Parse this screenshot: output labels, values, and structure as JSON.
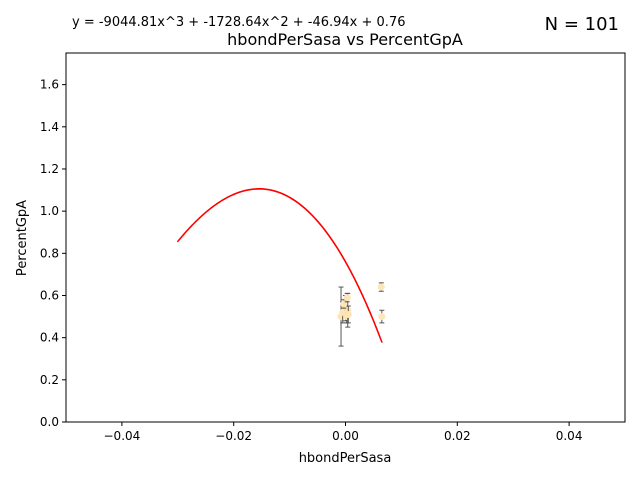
{
  "chart_data": {
    "type": "scatter",
    "title": "hbondPerSasa vs PercentGpA",
    "equation": "y = -9044.81x^3 + -1728.64x^2 + -46.94x + 0.76",
    "n_label": "N = 101",
    "xlabel": "hbondPerSasa",
    "ylabel": "PercentGpA",
    "xlim": [
      -0.05,
      0.05
    ],
    "ylim": [
      0.0,
      1.75
    ],
    "xticks": [
      -0.04,
      -0.02,
      0.0,
      0.02,
      0.04
    ],
    "xtick_labels": [
      "−0.04",
      "−0.02",
      "0.00",
      "0.02",
      "0.04"
    ],
    "yticks": [
      0.0,
      0.2,
      0.4,
      0.6,
      0.8,
      1.0,
      1.2,
      1.4,
      1.6
    ],
    "ytick_labels": [
      "0.0",
      "0.2",
      "0.4",
      "0.6",
      "0.8",
      "1.0",
      "1.2",
      "1.4",
      "1.6"
    ],
    "fit": {
      "a3": -9044.81,
      "a2": -1728.64,
      "a1": -46.94,
      "a0": 0.76,
      "color": "#ff0000"
    },
    "fit_x_sequence": [
      0.0,
      -0.03,
      0.0065,
      -0.02,
      0.0,
      -0.026,
      0.0065,
      -0.018,
      0.0,
      -0.024,
      0.0,
      -0.016,
      0.0,
      -0.022,
      0.0065,
      -0.014,
      0.0,
      -0.02,
      0.0,
      -0.012,
      0.0,
      -0.018,
      0.0065,
      -0.01,
      0.0,
      -0.025,
      0.0,
      -0.015,
      0.0,
      -0.021,
      0.0065,
      -0.008,
      0.0,
      -0.019,
      0.0,
      -0.013,
      0.0,
      -0.023,
      0.0,
      -0.011,
      0.0065,
      -0.017,
      0.0,
      -0.009,
      0.0,
      -0.02,
      0.0
    ],
    "points": [
      {
        "x": -0.0008,
        "y": 0.5,
        "err": 0.14
      },
      {
        "x": -0.0005,
        "y": 0.52,
        "err": 0.05
      },
      {
        "x": 0.0,
        "y": 0.54,
        "err": 0.06
      },
      {
        "x": 0.0002,
        "y": 0.5,
        "err": 0.03
      },
      {
        "x": 0.0004,
        "y": 0.53,
        "err": 0.08
      },
      {
        "x": 0.0005,
        "y": 0.51,
        "err": 0.04
      },
      {
        "x": -0.0003,
        "y": 0.56,
        "err": 0.02
      },
      {
        "x": 0.0003,
        "y": 0.59,
        "err": 0.02
      },
      {
        "x": 0.0064,
        "y": 0.64,
        "err": 0.02
      },
      {
        "x": 0.0065,
        "y": 0.5,
        "err": 0.03
      }
    ],
    "point_color": "#ffe4b5",
    "errorbar_color": "#555555",
    "grid": false
  }
}
